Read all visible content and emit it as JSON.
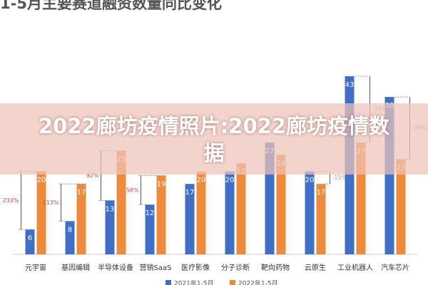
{
  "chart_data": {
    "type": "bar",
    "title": "1-5月主要赛道融资数量同比变化",
    "overlay_text": "2022廊坊疫情照片:2022廊坊疫情数据",
    "categories": [
      "元宇宙",
      "基因编辑",
      "半导体设备",
      "营销SaaS",
      "医疗影像",
      "分子诊断",
      "靶向药物",
      "云原生",
      "工业机器人",
      "汽车芯片"
    ],
    "series": [
      {
        "name": "2021年1-5月",
        "color": "#3f6fc6",
        "values": [
          6,
          8,
          13,
          12,
          17,
          20,
          27,
          20,
          43,
          38
        ]
      },
      {
        "name": "2022年1-5月",
        "color": "#ee8a3c",
        "values": [
          20,
          17,
          25,
          19,
          20,
          22,
          24,
          17,
          27,
          23
        ]
      }
    ],
    "change_labels": [
      "233%",
      "113%",
      "92%",
      "58%",
      null,
      null,
      null,
      "-15%",
      "-37%",
      "-39%"
    ],
    "positive_color": "#e0403a",
    "negative_color": "#999999"
  }
}
